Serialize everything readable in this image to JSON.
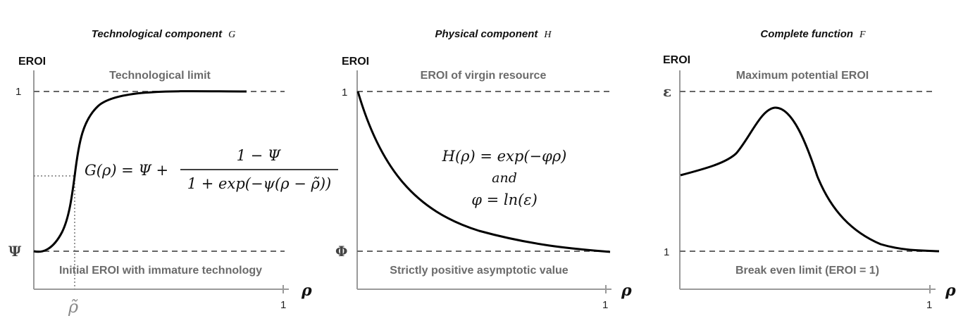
{
  "panels": [
    {
      "title": "Technological component",
      "title_symbol": "G",
      "y_label": "EROI",
      "top_level_label": "1",
      "top_note": "Technological limit",
      "bottom_level_label": "Ψ",
      "bottom_note": "Initial EROI with immature technology",
      "x_end_label": "1",
      "x_axis_symbol": "ρ",
      "x_marker_label": "ρ̃",
      "equation_lhs": "G(ρ) = Ψ +",
      "equation_num": "1 − Ψ",
      "equation_den": "1 + exp(−ψ(ρ − ρ̃))"
    },
    {
      "title": "Physical component",
      "title_symbol": "H",
      "y_label": "EROI",
      "top_level_label": "1",
      "top_note": "EROI of virgin resource",
      "bottom_level_label": "Φ",
      "bottom_note": "Strictly positive asymptotic value",
      "x_end_label": "1",
      "x_axis_symbol": "ρ",
      "equation_line1": "H(ρ) = exp(−φρ)",
      "equation_line2": "and",
      "equation_line3": "φ = ln(ε)"
    },
    {
      "title": "Complete function",
      "title_symbol": "F",
      "y_label": "EROI",
      "top_level_label": "ε",
      "top_note": "Maximum potential EROI",
      "bottom_level_label": "1",
      "bottom_note": "Break even limit (EROI = 1)",
      "x_end_label": "1",
      "x_axis_symbol": "ρ"
    }
  ]
}
